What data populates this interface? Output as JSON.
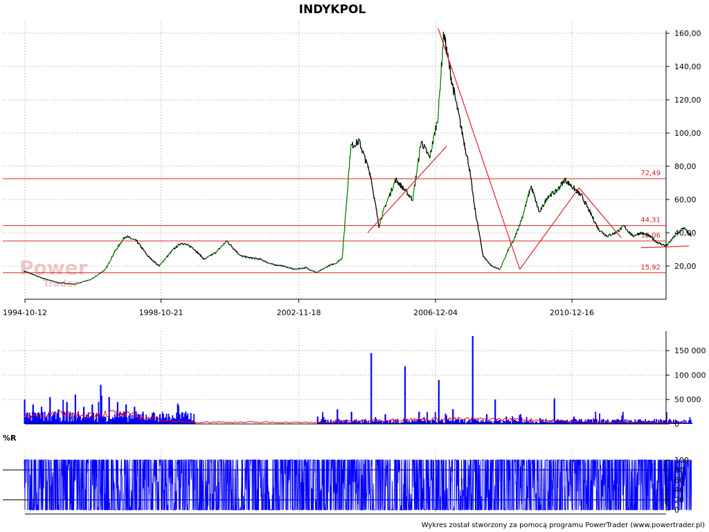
{
  "title": "INDYKPOL",
  "footer": "Wykres został stworzony za pomocą programu PowerTrader (www.powertrader.pl)",
  "watermark": {
    "line1": "Power",
    "line2": "Trader"
  },
  "oscillator_label": "%R",
  "colors": {
    "price_up": "#008000",
    "price_down": "#000000",
    "levels": "#e02020",
    "trendlines": "#e02020",
    "volume": "#0000ff",
    "volume_avg": "#ff0000",
    "oscillator": "#0000ff",
    "grid": "#999999"
  },
  "chart_data": [
    {
      "type": "line",
      "title": "INDYKPOL",
      "x_ticks": [
        "1994-10-12",
        "1998-10-21",
        "2002-11-18",
        "2006-12-04",
        "2010-12-16"
      ],
      "y_ticks": [
        "20,00",
        "40,00",
        "60,00",
        "80,00",
        "100,00",
        "120,00",
        "140,00",
        "160,00"
      ],
      "ylim": [
        0,
        170
      ],
      "grid": true,
      "series": [
        {
          "x": [
            "1994-10",
            "1995-04",
            "1995-10",
            "1996-04",
            "1996-10",
            "1997-03",
            "1997-06",
            "1997-10",
            "1998-02",
            "1998-06",
            "1998-10",
            "1999-03",
            "1999-06",
            "1999-10",
            "2000-02",
            "2000-06",
            "2000-10",
            "2001-03",
            "2001-06",
            "2001-10",
            "2002-02",
            "2002-06",
            "2002-10",
            "2003-02",
            "2003-06",
            "2003-10",
            "2004-01",
            "2004-03",
            "2004-06",
            "2004-09",
            "2005-01",
            "2005-04",
            "2005-06",
            "2005-10",
            "2006-01",
            "2006-04",
            "2006-07",
            "2006-10",
            "2007-01",
            "2007-03",
            "2007-06",
            "2007-09",
            "2007-12",
            "2008-02",
            "2008-05",
            "2008-08",
            "2008-11",
            "2009-02",
            "2009-04",
            "2009-07",
            "2009-10",
            "2010-01",
            "2010-04",
            "2010-07",
            "2010-10",
            "2011-01",
            "2011-04",
            "2011-07",
            "2011-10",
            "2012-01",
            "2012-04",
            "2012-07",
            "2012-10",
            "2013-01",
            "2013-04",
            "2013-07",
            "2013-10",
            "2014-01",
            "2014-04",
            "2014-07"
          ],
          "values": [
            17,
            13,
            10,
            9,
            12,
            18,
            28,
            38,
            35,
            26,
            20,
            30,
            34,
            31,
            24,
            28,
            35,
            26,
            25,
            24,
            21,
            20,
            18,
            19,
            16,
            20,
            22,
            25,
            92,
            95,
            75,
            44,
            55,
            72,
            66,
            60,
            95,
            85,
            110,
            160,
            130,
            105,
            80,
            55,
            26,
            20,
            18,
            30,
            36,
            50,
            68,
            52,
            62,
            65,
            72,
            67,
            62,
            52,
            42,
            38,
            40,
            44,
            38,
            40,
            38,
            34,
            32,
            38,
            43,
            38
          ]
        }
      ],
      "levels": [
        {
          "value": 72.49,
          "label": "72,49"
        },
        {
          "value": 44.31,
          "label": "44,31"
        },
        {
          "value": 35.06,
          "label": "35,06"
        },
        {
          "value": 15.92,
          "label": "15,92"
        }
      ],
      "trendlines": [
        {
          "x": [
            "2004-12",
            "2007-04"
          ],
          "y": [
            40,
            92
          ]
        },
        {
          "x": [
            "2007-01",
            "2009-06"
          ],
          "y": [
            163,
            18
          ]
        },
        {
          "x": [
            "2009-06",
            "2011-03"
          ],
          "y": [
            18,
            67
          ]
        },
        {
          "x": [
            "2011-03",
            "2012-06"
          ],
          "y": [
            67,
            37
          ]
        },
        {
          "x": [
            "2013-01",
            "2014-06"
          ],
          "y": [
            31,
            32
          ]
        }
      ]
    },
    {
      "type": "bar",
      "x_ticks": [],
      "y_ticks": [
        "0",
        "50 000",
        "100 000",
        "150 000"
      ],
      "ylim": [
        0,
        190000
      ],
      "series": [
        {
          "x": [
            "1994-10",
            "1995-01",
            "1995-04",
            "1995-07",
            "1995-10",
            "1996-01",
            "1996-04",
            "1996-07",
            "1996-10",
            "1997-01",
            "1997-04",
            "1997-07",
            "1997-10",
            "1998-01",
            "1998-04",
            "1998-07",
            "1998-10",
            "1999-01",
            "1999-04",
            "1999-07",
            "2003-06",
            "2004-01",
            "2004-06",
            "2005-01",
            "2005-06",
            "2006-01",
            "2006-06",
            "2007-01",
            "2007-06",
            "2008-01",
            "2008-06",
            "2008-09",
            "2009-01",
            "2009-06",
            "2010-01",
            "2010-06",
            "2011-01",
            "2011-06",
            "2012-01",
            "2013-01",
            "2014-01"
          ],
          "values": [
            50000,
            40000,
            35000,
            55000,
            30000,
            45000,
            60000,
            35000,
            40000,
            80000,
            55000,
            45000,
            40000,
            35000,
            25000,
            15000,
            20000,
            12000,
            10000,
            8000,
            15000,
            30000,
            25000,
            145000,
            20000,
            118000,
            25000,
            90000,
            30000,
            180000,
            20000,
            50000,
            15000,
            20000,
            12000,
            52000,
            15000,
            10000,
            8000,
            5000,
            5000
          ]
        }
      ],
      "average": {
        "x": [
          "1994-10",
          "1995-06",
          "1996-06",
          "1997-06",
          "1998-06",
          "1999-06",
          "2003-06",
          "2005-06",
          "2007-06",
          "2009-06",
          "2011-06",
          "2014-06"
        ],
        "values": [
          15000,
          20000,
          18000,
          22000,
          12000,
          4000,
          3000,
          8000,
          10000,
          9000,
          4000,
          3000
        ]
      }
    },
    {
      "type": "line",
      "title": "%R",
      "y_ticks": [
        "0",
        "20",
        "40",
        "60",
        "80",
        "100"
      ],
      "ylim": [
        0,
        100
      ],
      "reference_lines": [
        20,
        80
      ],
      "series": [
        {
          "x": [
            "1994-10",
            "2014-07"
          ],
          "values": [
            90,
            30
          ]
        }
      ]
    }
  ]
}
